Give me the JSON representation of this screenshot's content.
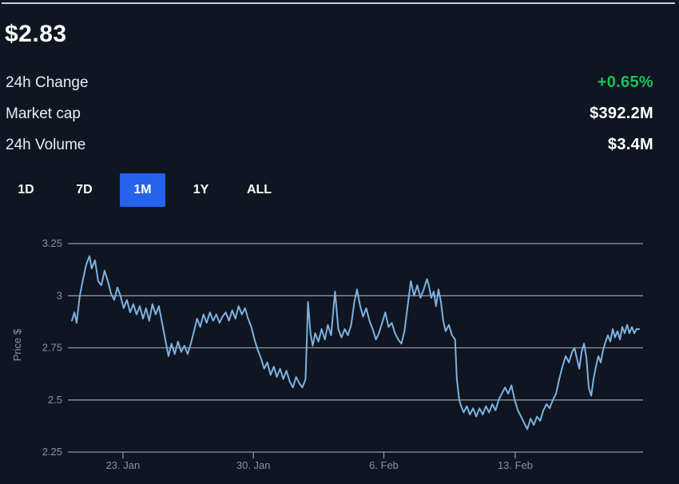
{
  "header": {
    "price": "$2.83"
  },
  "stats": [
    {
      "label": "24h Change",
      "value": "+0.65%",
      "value_color": "#17c05f"
    },
    {
      "label": "Market cap",
      "value": "$392.2M",
      "value_color": "#ffffff"
    },
    {
      "label": "24h Volume",
      "value": "$3.4M",
      "value_color": "#ffffff"
    }
  ],
  "ranges": {
    "options": [
      "1D",
      "7D",
      "1M",
      "1Y",
      "ALL"
    ],
    "selected": "1M"
  },
  "colors": {
    "background": "#0f1621",
    "divider": "#c9cfd8",
    "accent_blue": "#2563eb",
    "accent_green": "#17c05f",
    "line": "#7db1e0",
    "grid": "#8f969f",
    "axis_text": "#8b929b"
  },
  "chart_data": {
    "type": "line",
    "title": "",
    "xlabel": "",
    "ylabel": "Price $",
    "line_color": "#7db1e0",
    "x_unit": "days (0 = chart start, ~20 Jan)",
    "x_range": [
      0,
      30
    ],
    "ylim": [
      2.25,
      3.25
    ],
    "grid": "horizontal",
    "y_ticks": [
      {
        "value": 3.25,
        "label": "3.25"
      },
      {
        "value": 3.0,
        "label": "3"
      },
      {
        "value": 2.75,
        "label": "2.75"
      },
      {
        "value": 2.5,
        "label": "2.5"
      },
      {
        "value": 2.25,
        "label": "2.25"
      }
    ],
    "x_ticks": [
      {
        "x": 2.7,
        "label": "23. Jan"
      },
      {
        "x": 9.6,
        "label": "30. Jan"
      },
      {
        "x": 16.5,
        "label": "6. Feb"
      },
      {
        "x": 23.45,
        "label": "13. Feb"
      }
    ],
    "points": [
      [
        0,
        2.88
      ],
      [
        0.13,
        2.92
      ],
      [
        0.25,
        2.87
      ],
      [
        0.42,
        3.0
      ],
      [
        0.59,
        3.08
      ],
      [
        0.76,
        3.15
      ],
      [
        0.93,
        3.19
      ],
      [
        1.05,
        3.13
      ],
      [
        1.22,
        3.17
      ],
      [
        1.39,
        3.07
      ],
      [
        1.56,
        3.05
      ],
      [
        1.73,
        3.12
      ],
      [
        1.9,
        3.07
      ],
      [
        2.07,
        3.01
      ],
      [
        2.24,
        2.98
      ],
      [
        2.41,
        3.04
      ],
      [
        2.57,
        3.0
      ],
      [
        2.74,
        2.94
      ],
      [
        2.91,
        2.98
      ],
      [
        3.08,
        2.92
      ],
      [
        3.25,
        2.96
      ],
      [
        3.42,
        2.91
      ],
      [
        3.59,
        2.95
      ],
      [
        3.76,
        2.89
      ],
      [
        3.92,
        2.94
      ],
      [
        4.09,
        2.88
      ],
      [
        4.26,
        2.96
      ],
      [
        4.43,
        2.91
      ],
      [
        4.6,
        2.95
      ],
      [
        4.77,
        2.87
      ],
      [
        4.94,
        2.79
      ],
      [
        5.11,
        2.71
      ],
      [
        5.27,
        2.77
      ],
      [
        5.44,
        2.72
      ],
      [
        5.61,
        2.78
      ],
      [
        5.78,
        2.73
      ],
      [
        5.95,
        2.76
      ],
      [
        6.12,
        2.72
      ],
      [
        6.29,
        2.77
      ],
      [
        6.46,
        2.83
      ],
      [
        6.62,
        2.89
      ],
      [
        6.79,
        2.85
      ],
      [
        6.96,
        2.91
      ],
      [
        7.13,
        2.87
      ],
      [
        7.3,
        2.92
      ],
      [
        7.47,
        2.88
      ],
      [
        7.64,
        2.91
      ],
      [
        7.81,
        2.87
      ],
      [
        7.97,
        2.9
      ],
      [
        8.14,
        2.92
      ],
      [
        8.31,
        2.88
      ],
      [
        8.48,
        2.93
      ],
      [
        8.65,
        2.89
      ],
      [
        8.82,
        2.95
      ],
      [
        8.99,
        2.91
      ],
      [
        9.16,
        2.94
      ],
      [
        9.32,
        2.89
      ],
      [
        9.49,
        2.85
      ],
      [
        9.66,
        2.79
      ],
      [
        9.83,
        2.74
      ],
      [
        10,
        2.7
      ],
      [
        10.17,
        2.65
      ],
      [
        10.34,
        2.68
      ],
      [
        10.51,
        2.62
      ],
      [
        10.68,
        2.66
      ],
      [
        10.84,
        2.61
      ],
      [
        11.01,
        2.65
      ],
      [
        11.18,
        2.6
      ],
      [
        11.35,
        2.64
      ],
      [
        11.52,
        2.59
      ],
      [
        11.69,
        2.56
      ],
      [
        11.86,
        2.61
      ],
      [
        12.03,
        2.58
      ],
      [
        12.19,
        2.56
      ],
      [
        12.36,
        2.6
      ],
      [
        12.49,
        2.97
      ],
      [
        12.62,
        2.82
      ],
      [
        12.74,
        2.76
      ],
      [
        12.87,
        2.82
      ],
      [
        13.04,
        2.78
      ],
      [
        13.21,
        2.84
      ],
      [
        13.38,
        2.79
      ],
      [
        13.54,
        2.86
      ],
      [
        13.71,
        2.81
      ],
      [
        13.92,
        3.02
      ],
      [
        14.09,
        2.84
      ],
      [
        14.26,
        2.8
      ],
      [
        14.43,
        2.84
      ],
      [
        14.6,
        2.81
      ],
      [
        14.77,
        2.86
      ],
      [
        14.94,
        2.97
      ],
      [
        15.08,
        3.03
      ],
      [
        15.25,
        2.95
      ],
      [
        15.4,
        2.9
      ],
      [
        15.57,
        2.94
      ],
      [
        15.74,
        2.88
      ],
      [
        15.91,
        2.84
      ],
      [
        16.08,
        2.79
      ],
      [
        16.24,
        2.82
      ],
      [
        16.41,
        2.87
      ],
      [
        16.58,
        2.92
      ],
      [
        16.75,
        2.85
      ],
      [
        16.92,
        2.87
      ],
      [
        17.09,
        2.82
      ],
      [
        17.26,
        2.79
      ],
      [
        17.43,
        2.77
      ],
      [
        17.59,
        2.83
      ],
      [
        17.76,
        2.95
      ],
      [
        17.93,
        3.07
      ],
      [
        18.1,
        3.0
      ],
      [
        18.27,
        3.05
      ],
      [
        18.44,
        2.99
      ],
      [
        18.61,
        3.03
      ],
      [
        18.78,
        3.08
      ],
      [
        18.88,
        3.05
      ],
      [
        19.01,
        2.99
      ],
      [
        19.14,
        3.02
      ],
      [
        19.26,
        2.95
      ],
      [
        19.39,
        3.03
      ],
      [
        19.52,
        2.97
      ],
      [
        19.64,
        2.88
      ],
      [
        19.77,
        2.83
      ],
      [
        19.94,
        2.86
      ],
      [
        20.11,
        2.81
      ],
      [
        20.27,
        2.79
      ],
      [
        20.36,
        2.6
      ],
      [
        20.49,
        2.5
      ],
      [
        20.55,
        2.48
      ],
      [
        20.72,
        2.44
      ],
      [
        20.89,
        2.47
      ],
      [
        21.05,
        2.43
      ],
      [
        21.22,
        2.46
      ],
      [
        21.39,
        2.42
      ],
      [
        21.56,
        2.46
      ],
      [
        21.73,
        2.43
      ],
      [
        21.9,
        2.47
      ],
      [
        22.07,
        2.44
      ],
      [
        22.24,
        2.48
      ],
      [
        22.41,
        2.45
      ],
      [
        22.57,
        2.5
      ],
      [
        22.74,
        2.53
      ],
      [
        22.91,
        2.56
      ],
      [
        23.08,
        2.53
      ],
      [
        23.25,
        2.57
      ],
      [
        23.42,
        2.5
      ],
      [
        23.59,
        2.45
      ],
      [
        23.76,
        2.42
      ],
      [
        23.92,
        2.39
      ],
      [
        24.09,
        2.36
      ],
      [
        24.26,
        2.41
      ],
      [
        24.43,
        2.38
      ],
      [
        24.6,
        2.42
      ],
      [
        24.77,
        2.4
      ],
      [
        24.94,
        2.45
      ],
      [
        25.11,
        2.48
      ],
      [
        25.27,
        2.46
      ],
      [
        25.44,
        2.5
      ],
      [
        25.61,
        2.53
      ],
      [
        25.78,
        2.6
      ],
      [
        25.95,
        2.66
      ],
      [
        26.12,
        2.71
      ],
      [
        26.29,
        2.68
      ],
      [
        26.46,
        2.73
      ],
      [
        26.58,
        2.75
      ],
      [
        26.71,
        2.7
      ],
      [
        26.84,
        2.65
      ],
      [
        26.96,
        2.73
      ],
      [
        27.09,
        2.77
      ],
      [
        27.22,
        2.7
      ],
      [
        27.34,
        2.56
      ],
      [
        27.47,
        2.52
      ],
      [
        27.59,
        2.6
      ],
      [
        27.72,
        2.66
      ],
      [
        27.85,
        2.71
      ],
      [
        27.97,
        2.68
      ],
      [
        28.1,
        2.74
      ],
      [
        28.23,
        2.78
      ],
      [
        28.35,
        2.81
      ],
      [
        28.48,
        2.78
      ],
      [
        28.61,
        2.84
      ],
      [
        28.73,
        2.8
      ],
      [
        28.86,
        2.83
      ],
      [
        28.99,
        2.79
      ],
      [
        29.11,
        2.85
      ],
      [
        29.24,
        2.82
      ],
      [
        29.37,
        2.86
      ],
      [
        29.49,
        2.82
      ],
      [
        29.62,
        2.85
      ],
      [
        29.75,
        2.82
      ],
      [
        29.87,
        2.84
      ],
      [
        30,
        2.84
      ]
    ]
  }
}
